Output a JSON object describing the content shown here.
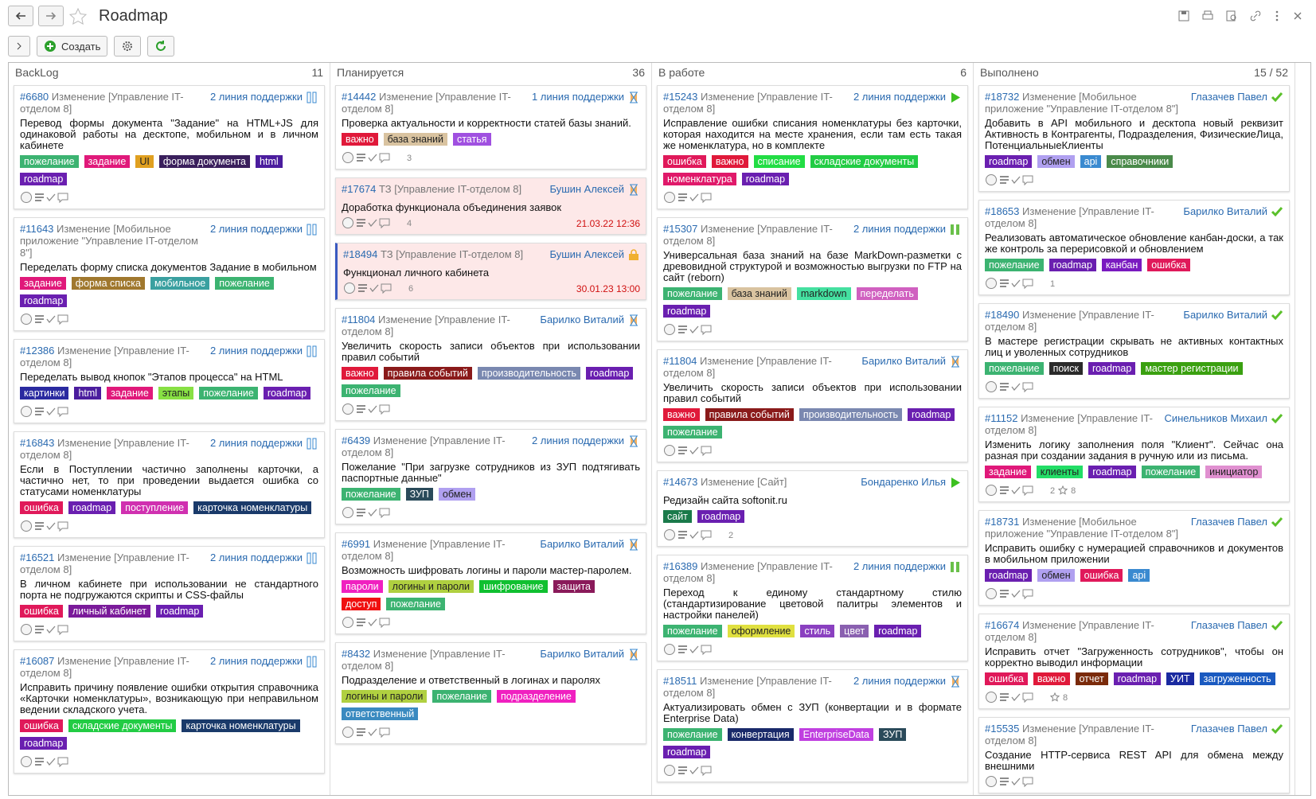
{
  "header": {
    "title": "Roadmap",
    "create_button": "Создать"
  },
  "tag_colors": {
    "пожелание": "#3cb371",
    "задание": "#e0197a",
    "UI": "#e0a020",
    "форма документа": "#3a1f5c",
    "html": "#4b1d9e",
    "roadmap": "#6a1fb0",
    "форма списка": "#a0782e",
    "мобильное": "#3aa0a0",
    "картинки": "#2a2aa0",
    "этапы": "#88e044",
    "ошибка": "#e0195a",
    "поступление": "#d030b0",
    "карточка номенклатуры": "#1a3a6a",
    "личный кабинет": "#7a1a9a",
    "складские документы": "#22cc44",
    "важно": "#e0193a",
    "база знаний": "#d9c3a0",
    "статья": "#a050e0",
    "правила событий": "#8a1a1a",
    "производительность": "#7a88b0",
    "ЗУП": "#2a4a5a",
    "обмен": "#b0a0f0",
    "пароли": "#f020c0",
    "логины и пароли": "#b0d040",
    "шифрование": "#10c030",
    "защита": "#8a1a5a",
    "доступ": "#f01010",
    "подразделение": "#f020c0",
    "ответственный": "#3a8ac0",
    "списание": "#22dd44",
    "номенклатура": "#e0196a",
    "markdown": "#44e0a0",
    "переделать": "#d060c0",
    "сайт": "#1a7a4a",
    "оформление": "#e0e040",
    "стиль": "#8a40c0",
    "цвет": "#8a60b0",
    "конвертация": "#1a2a6a",
    "EnterpriseData": "#c040e0",
    "api": "#3a8ad0",
    "справочники": "#4a8a4a",
    "канбан": "#7a1ac0",
    "поиск": "#2a2a2a",
    "мастер регистрации": "#3aa010",
    "клиенты": "#22dd66",
    "инициатор": "#e090d0",
    "отчет": "#7a2a0a",
    "УИТ": "#1a2aa0",
    "загруженность": "#1a5ac0"
  },
  "columns": [
    {
      "name": "BackLog",
      "count": "11",
      "cards": [
        {
          "id": "#6680",
          "kind": "Изменение [Управление IT-отделом 8]",
          "assignee": "2 линия поддержки",
          "status": "pause",
          "title": "Перевод формы документа \"Задание\" на HTML+JS для одинаковой работы на десктопе, мобильном и в личном кабинете",
          "tags": [
            "пожелание",
            "задание",
            "UI",
            "форма документа",
            "html",
            "roadmap"
          ]
        },
        {
          "id": "#11643",
          "kind": "Изменение [Мобильное приложение \"Управление IT-отделом 8\"]",
          "assignee": "2 линия поддержки",
          "status": "pause",
          "title": "Переделать форму списка документов Задание в мобильном",
          "tags": [
            "задание",
            "форма списка",
            "мобильное",
            "пожелание",
            "roadmap"
          ]
        },
        {
          "id": "#12386",
          "kind": "Изменение [Управление IT-отделом 8]",
          "assignee": "2 линия поддержки",
          "status": "pause",
          "title": "Переделать вывод кнопок \"Этапов процесса\" на HTML",
          "tags": [
            "картинки",
            "html",
            "задание",
            "этапы",
            "пожелание",
            "roadmap"
          ]
        },
        {
          "id": "#16843",
          "kind": "Изменение [Управление IT-отделом 8]",
          "assignee": "2 линия поддержки",
          "status": "pause",
          "title": "Если в Поступлении частично заполнены карточки, а частично нет, то при проведении выдается ошибка со статусами номенклатуры",
          "tags": [
            "ошибка",
            "roadmap",
            "поступление",
            "карточка номенклатуры"
          ]
        },
        {
          "id": "#16521",
          "kind": "Изменение [Управление IT-отделом 8]",
          "assignee": "2 линия поддержки",
          "status": "pause",
          "title": "В личном кабинете при использовании не стандартного порта не подгружаются скрипты и CSS-файлы",
          "tags": [
            "ошибка",
            "личный кабинет",
            "roadmap"
          ]
        },
        {
          "id": "#16087",
          "kind": "Изменение [Управление IT-отделом 8]",
          "assignee": "2 линия поддержки",
          "status": "pause",
          "title": "Исправить причину появление ошибки открытия справочника «Карточки номенклатуры», возникающую при неправильном ведении складского учета.",
          "tags": [
            "ошибка",
            "складские документы",
            "карточка номенклатуры",
            "roadmap"
          ]
        }
      ]
    },
    {
      "name": "Планируется",
      "count": "36",
      "cards": [
        {
          "id": "#14442",
          "kind": "Изменение [Управление IT-отделом 8]",
          "assignee": "1 линия поддержки",
          "status": "hourglass",
          "title": "Проверка актуальности и корректности статей базы знаний.",
          "tags": [
            "важно",
            "база знаний",
            "статья"
          ],
          "comments": "3"
        },
        {
          "id": "#17674",
          "kind": "ТЗ [Управление IT-отделом 8]",
          "assignee": "Бушин Алексей",
          "status": "hourglass",
          "title": "Доработка функционала объединения заявок",
          "tags": [],
          "comments": "4",
          "date": "21.03.22 12:36"
        },
        {
          "id": "#18494",
          "kind": "ТЗ [Управление IT-отделом 8]",
          "assignee": "Бушин Алексей",
          "status": "lock",
          "title": "Функционал личного кабинета",
          "tags": [],
          "comments": "6",
          "date": "30.01.23 13:00"
        },
        {
          "id": "#11804",
          "kind": "Изменение [Управление IT-отделом 8]",
          "assignee": "Барилко Виталий",
          "status": "hourglass",
          "title": "Увеличить скорость записи объектов при использовании правил событий",
          "tags": [
            "важно",
            "правила событий",
            "производительность",
            "roadmap",
            "пожелание"
          ]
        },
        {
          "id": "#6439",
          "kind": "Изменение [Управление IT-отделом 8]",
          "assignee": "2 линия поддержки",
          "status": "hourglass",
          "title": "Пожелание \"При загрузке сотрудников из ЗУП подтягивать паспортные данные\"",
          "tags": [
            "пожелание",
            "ЗУП",
            "обмен"
          ]
        },
        {
          "id": "#6991",
          "kind": "Изменение [Управление IT-отделом 8]",
          "assignee": "Барилко Виталий",
          "status": "hourglass",
          "title": "Возможность шифровать логины и пароли мастер-паролем.",
          "tags": [
            "пароли",
            "логины и пароли",
            "шифрование",
            "защита",
            "доступ",
            "пожелание"
          ]
        },
        {
          "id": "#8432",
          "kind": "Изменение [Управление IT-отделом 8]",
          "assignee": "Барилко Виталий",
          "status": "hourglass",
          "title": "Подразделение и ответственный в логинах и паролях",
          "tags": [
            "логины и пароли",
            "пожелание",
            "подразделение",
            "ответственный"
          ]
        }
      ]
    },
    {
      "name": "В работе",
      "count": "6",
      "cards": [
        {
          "id": "#15243",
          "kind": "Изменение [Управление IT-отделом 8]",
          "assignee": "2 линия поддержки",
          "status": "play",
          "title": "Исправление ошибки списания номенклатуры без карточки, которая находится на месте хранения, если там есть такая же номенклатура, но в комплекте",
          "tags": [
            "ошибка",
            "важно",
            "списание",
            "складские документы",
            "номенклатура",
            "roadmap"
          ]
        },
        {
          "id": "#15307",
          "kind": "Изменение [Управление IT-отделом 8]",
          "assignee": "2 линия поддержки",
          "status": "pause-green",
          "title": "Универсальная база знаний на базе MarkDown-разметки с древовидной структурой и возможностью выгрузки по FTP на сайт (reborn)",
          "tags": [
            "пожелание",
            "база знаний",
            "markdown",
            "переделать",
            "roadmap"
          ]
        },
        {
          "id": "#11804",
          "kind": "Изменение [Управление IT-отделом 8]",
          "assignee": "Барилко Виталий",
          "status": "hourglass",
          "title": "Увеличить скорость записи объектов при использовании правил событий",
          "tags": [
            "важно",
            "правила событий",
            "производительность",
            "roadmap",
            "пожелание"
          ]
        },
        {
          "id": "#14673",
          "kind": "Изменение [Сайт]",
          "assignee": "Бондаренко Илья",
          "status": "play",
          "title": "Редизайн сайта softonit.ru",
          "tags": [
            "сайт",
            "roadmap"
          ],
          "comments": "2"
        },
        {
          "id": "#16389",
          "kind": "Изменение [Управление IT-отделом 8]",
          "assignee": "2 линия поддержки",
          "status": "pause-green",
          "title": "Переход к единому стандартному стилю (стандартизирование цветовой палитры элементов и настройки панелей)",
          "tags": [
            "пожелание",
            "оформление",
            "стиль",
            "цвет",
            "roadmap"
          ]
        },
        {
          "id": "#18511",
          "kind": "Изменение [Управление IT-отделом 8]",
          "assignee": "2 линия поддержки",
          "status": "hourglass",
          "title": "Актуализировать обмен с ЗУП (конвертации и в формате Enterprise Data)",
          "tags": [
            "пожелание",
            "конвертация",
            "EnterpriseData",
            "ЗУП",
            "roadmap"
          ]
        }
      ]
    },
    {
      "name": "Выполнено",
      "count": "15 / 52",
      "cards": [
        {
          "id": "#18732",
          "kind": "Изменение [Мобильное приложение \"Управление IT-отделом 8\"]",
          "assignee": "Глазачев Павел",
          "status": "check",
          "title": "Добавить в API мобильного и десктопа новый реквизит Активность в Контрагенты, Подразделения, ФизическиеЛица, ПотенциальныеКлиенты",
          "tags": [
            "roadmap",
            "обмен",
            "api",
            "справочники"
          ]
        },
        {
          "id": "#18653",
          "kind": "Изменение [Управление IT-отделом 8]",
          "assignee": "Барилко Виталий",
          "status": "check",
          "title": "Реализовать автоматическое обновление канбан-доски, а так же контроль за перерисовкой и обновлением",
          "tags": [
            "пожелание",
            "roadmap",
            "канбан",
            "ошибка"
          ],
          "comments": "1"
        },
        {
          "id": "#18490",
          "kind": "Изменение [Управление IT-отделом 8]",
          "assignee": "Барилко Виталий",
          "status": "check",
          "title": "В мастере регистрации скрывать не активных контактных лиц и уволенных сотрудников",
          "tags": [
            "пожелание",
            "поиск",
            "roadmap",
            "мастер регистрации"
          ]
        },
        {
          "id": "#11152",
          "kind": "Изменение [Управление IT-отделом 8]",
          "assignee": "Синельников Михаил",
          "status": "check",
          "title": "Изменить логику заполнения поля \"Клиент\". Сейчас она разная при создании задания в ручную или из письма.",
          "tags": [
            "задание",
            "клиенты",
            "roadmap",
            "пожелание",
            "инициатор"
          ],
          "comments": "2",
          "stars": "8"
        },
        {
          "id": "#18731",
          "kind": "Изменение [Мобильное приложение \"Управление IT-отделом 8\"]",
          "assignee": "Глазачев Павел",
          "status": "check",
          "title": "Исправить ошибку с нумерацией справочников и документов в мобильном приложении",
          "tags": [
            "roadmap",
            "обмен",
            "ошибка",
            "api"
          ]
        },
        {
          "id": "#16674",
          "kind": "Изменение [Управление IT-отделом 8]",
          "assignee": "Глазачев Павел",
          "status": "check",
          "title": "Исправить отчет \"Загруженность сотрудников\", чтобы он корректно выводил информации",
          "tags": [
            "ошибка",
            "важно",
            "отчет",
            "roadmap",
            "УИТ",
            "загруженность"
          ],
          "stars": "8"
        },
        {
          "id": "#15535",
          "kind": "Изменение [Управление IT-отделом 8]",
          "assignee": "Глазачев Павел",
          "status": "check",
          "title": "Создание HTTP-сервиса REST API для обмена между внешними",
          "tags": []
        }
      ]
    }
  ]
}
